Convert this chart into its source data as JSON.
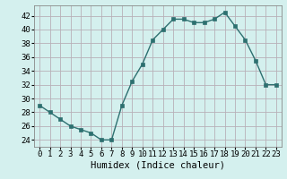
{
  "x": [
    0,
    1,
    2,
    3,
    4,
    5,
    6,
    7,
    8,
    9,
    10,
    11,
    12,
    13,
    14,
    15,
    16,
    17,
    18,
    19,
    20,
    21,
    22,
    23
  ],
  "y": [
    29,
    28,
    27,
    26,
    25.5,
    25,
    24,
    24,
    29,
    32.5,
    35,
    38.5,
    40,
    41.5,
    41.5,
    41,
    41,
    41.5,
    42.5,
    40.5,
    38.5,
    35.5,
    32,
    32
  ],
  "line_color": "#2d7070",
  "marker_color": "#2d7070",
  "bg_color": "#d4f0ee",
  "grid_color": "#b8b0b8",
  "xlabel": "Humidex (Indice chaleur)",
  "ylim": [
    23,
    43.5
  ],
  "xlim": [
    -0.5,
    23.5
  ],
  "yticks": [
    24,
    26,
    28,
    30,
    32,
    34,
    36,
    38,
    40,
    42
  ],
  "xticks": [
    0,
    1,
    2,
    3,
    4,
    5,
    6,
    7,
    8,
    9,
    10,
    11,
    12,
    13,
    14,
    15,
    16,
    17,
    18,
    19,
    20,
    21,
    22,
    23
  ],
  "xlabel_fontsize": 7.5,
  "tick_fontsize": 6.5,
  "line_width": 1.0,
  "marker_size": 2.5
}
